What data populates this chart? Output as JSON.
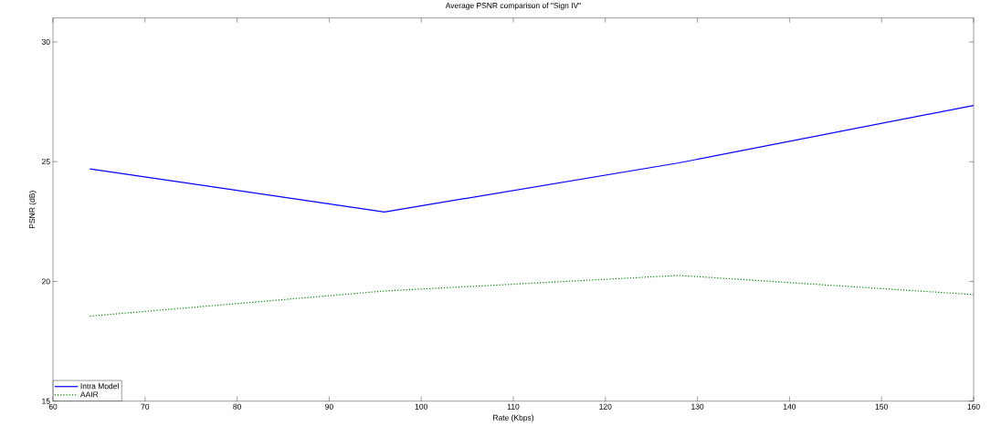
{
  "chart_data": {
    "type": "line",
    "title": "Average PSNR comparison of \"Sign IV\"",
    "xlabel": "Rate (Kbps)",
    "ylabel": "PSNR (dB)",
    "x": [
      64,
      96,
      128,
      160
    ],
    "series": [
      {
        "name": "Intra Model",
        "color": "#0000ff",
        "line_style": "solid",
        "values": [
          24.7,
          22.9,
          24.95,
          27.35
        ]
      },
      {
        "name": "AAIR",
        "color": "#008000",
        "line_style": "dotted",
        "values": [
          18.55,
          19.6,
          20.25,
          19.45
        ]
      }
    ],
    "xlim": [
      60,
      160
    ],
    "xticks": [
      60,
      70,
      80,
      90,
      100,
      110,
      120,
      130,
      140,
      150,
      160
    ],
    "ylim": [
      15,
      31
    ],
    "yticks": [
      15,
      20,
      25,
      30
    ],
    "grid": false,
    "legend": "bottom left"
  }
}
